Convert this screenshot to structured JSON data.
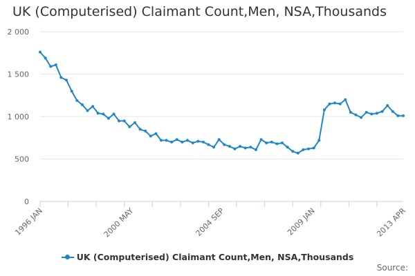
{
  "chart_data": {
    "type": "line",
    "title": "UK (Computerised) Claimant Count,Men, NSA,Thousands",
    "xlabel": "",
    "ylabel": "",
    "ylim": [
      0,
      2000
    ],
    "y_ticks": [
      0,
      500,
      1000,
      1500,
      2000
    ],
    "y_tick_labels": [
      "0",
      "500",
      "1 000",
      "1 500",
      "2 000"
    ],
    "x_tick_labels": [
      "1996 JAN",
      "2000 MAY",
      "2004 SEP",
      "2009 JAN",
      "2013 APR"
    ],
    "x_range": [
      "1996-01",
      "2013-04"
    ],
    "grid": true,
    "legend_position": "bottom",
    "series": [
      {
        "name": "UK (Computerised) Claimant Count,Men, NSA,Thousands",
        "color": "#1f86c7",
        "x": [
          "1996-01",
          "1996-04",
          "1996-07",
          "1996-10",
          "1997-01",
          "1997-04",
          "1997-07",
          "1997-10",
          "1998-01",
          "1998-04",
          "1998-07",
          "1998-10",
          "1999-01",
          "1999-04",
          "1999-07",
          "1999-10",
          "2000-01",
          "2000-04",
          "2000-07",
          "2000-10",
          "2001-01",
          "2001-04",
          "2001-07",
          "2001-10",
          "2002-01",
          "2002-04",
          "2002-07",
          "2002-10",
          "2003-01",
          "2003-04",
          "2003-07",
          "2003-10",
          "2004-01",
          "2004-04",
          "2004-07",
          "2004-10",
          "2005-01",
          "2005-04",
          "2005-07",
          "2005-10",
          "2006-01",
          "2006-04",
          "2006-07",
          "2006-10",
          "2007-01",
          "2007-04",
          "2007-07",
          "2007-10",
          "2008-01",
          "2008-04",
          "2008-07",
          "2008-10",
          "2009-01",
          "2009-04",
          "2009-07",
          "2009-10",
          "2010-01",
          "2010-04",
          "2010-07",
          "2010-10",
          "2011-01",
          "2011-04",
          "2011-07",
          "2011-10",
          "2012-01",
          "2012-04",
          "2012-07",
          "2012-10",
          "2013-01",
          "2013-04"
        ],
        "values": [
          1760,
          1690,
          1590,
          1610,
          1460,
          1430,
          1300,
          1190,
          1140,
          1070,
          1120,
          1040,
          1030,
          980,
          1030,
          950,
          950,
          880,
          930,
          850,
          830,
          770,
          800,
          720,
          720,
          700,
          730,
          700,
          720,
          690,
          710,
          700,
          670,
          640,
          730,
          670,
          650,
          620,
          650,
          630,
          640,
          610,
          730,
          690,
          700,
          680,
          690,
          640,
          590,
          570,
          610,
          620,
          630,
          720,
          1080,
          1150,
          1160,
          1150,
          1200,
          1050,
          1020,
          990,
          1050,
          1030,
          1040,
          1060,
          1130,
          1060,
          1010,
          1010
        ]
      }
    ]
  },
  "legend": {
    "label": "UK (Computerised) Claimant Count,Men, NSA,Thousands"
  },
  "source": {
    "label": "Source:"
  }
}
